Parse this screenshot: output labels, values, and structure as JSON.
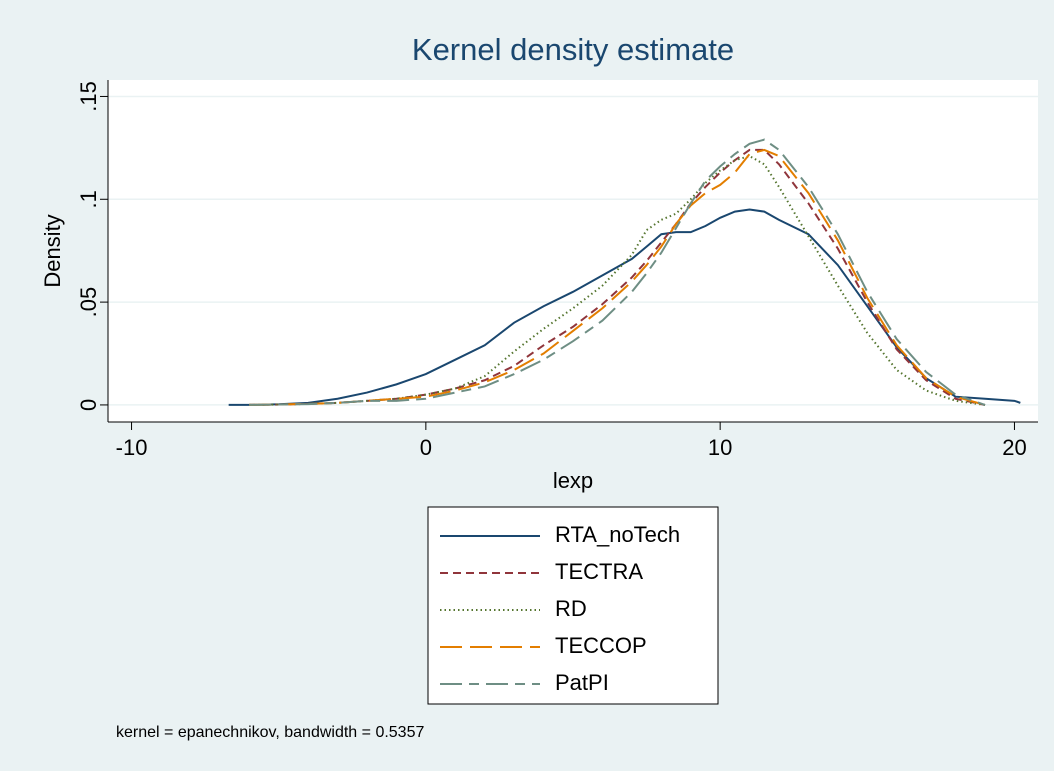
{
  "chart_data": {
    "type": "line",
    "title": "Kernel density estimate",
    "x_label": "lexp",
    "y_label": "Density",
    "note": "kernel = epanechnikov, bandwidth = 0.5357",
    "x": [
      -6.7,
      -6,
      -5,
      -4,
      -3,
      -2,
      -1,
      0,
      1,
      2,
      3,
      4,
      5,
      6,
      7,
      7.5,
      8,
      8.5,
      9,
      9.5,
      10,
      10.5,
      11,
      11.5,
      12,
      13,
      14,
      15,
      16,
      17,
      18,
      19,
      20,
      20.2
    ],
    "series": [
      {
        "name": "RTA_noTech",
        "color": "#1a476f",
        "style": "solid",
        "values": [
          0,
          0,
          0.0003,
          0.001,
          0.003,
          0.006,
          0.01,
          0.015,
          0.022,
          0.029,
          0.04,
          0.048,
          0.055,
          0.063,
          0.071,
          0.077,
          0.083,
          0.084,
          0.084,
          0.087,
          0.091,
          0.094,
          0.095,
          0.094,
          0.09,
          0.083,
          0.068,
          0.048,
          0.028,
          0.013,
          0.004,
          0.003,
          0.002,
          0.001
        ]
      },
      {
        "name": "TECTRA",
        "color": "#90353b",
        "style": "dash",
        "values": [
          null,
          0,
          0.0002,
          0.0005,
          0.001,
          0.002,
          0.003,
          0.005,
          0.008,
          0.012,
          0.019,
          0.029,
          0.038,
          0.049,
          0.062,
          0.07,
          0.079,
          0.088,
          0.098,
          0.106,
          0.113,
          0.119,
          0.124,
          0.124,
          0.117,
          0.098,
          0.076,
          0.05,
          0.027,
          0.012,
          0.003,
          0,
          null,
          null
        ]
      },
      {
        "name": "RD",
        "color": "#55752f",
        "style": "dot",
        "values": [
          null,
          0,
          0.0002,
          0.0005,
          0.001,
          0.002,
          0.003,
          0.005,
          0.008,
          0.014,
          0.026,
          0.037,
          0.047,
          0.058,
          0.073,
          0.085,
          0.09,
          0.093,
          0.1,
          0.108,
          0.114,
          0.119,
          0.121,
          0.117,
          0.106,
          0.082,
          0.058,
          0.035,
          0.017,
          0.007,
          0.002,
          0,
          null,
          null
        ]
      },
      {
        "name": "TECCOP",
        "color": "#e37e00",
        "style": "longdash",
        "values": [
          null,
          0,
          0.0002,
          0.0005,
          0.001,
          0.002,
          0.003,
          0.004,
          0.007,
          0.011,
          0.017,
          0.025,
          0.036,
          0.047,
          0.06,
          0.068,
          0.077,
          0.088,
          0.097,
          0.103,
          0.107,
          0.113,
          0.122,
          0.124,
          0.121,
          0.103,
          0.08,
          0.052,
          0.029,
          0.013,
          0.004,
          0,
          null,
          null
        ]
      },
      {
        "name": "PatPI",
        "color": "#6e8e84",
        "style": "longdash-dash",
        "values": [
          null,
          0,
          0.0002,
          0.0004,
          0.001,
          0.002,
          0.002,
          0.003,
          0.006,
          0.009,
          0.015,
          0.022,
          0.031,
          0.041,
          0.055,
          0.064,
          0.074,
          0.086,
          0.098,
          0.109,
          0.116,
          0.122,
          0.127,
          0.129,
          0.124,
          0.106,
          0.083,
          0.055,
          0.032,
          0.016,
          0.005,
          0,
          null,
          null
        ]
      }
    ],
    "xlim": [
      -10.8,
      20.8
    ],
    "xticks": [
      -10,
      0,
      10,
      20
    ],
    "ylim": [
      -0.0083,
      0.158
    ],
    "yticks": [
      0,
      {
        "value": 0.05,
        "label": ".05"
      },
      {
        "value": 0.1,
        "label": ".1"
      },
      {
        "value": 0.15,
        "label": ".15"
      }
    ],
    "grid": true
  }
}
